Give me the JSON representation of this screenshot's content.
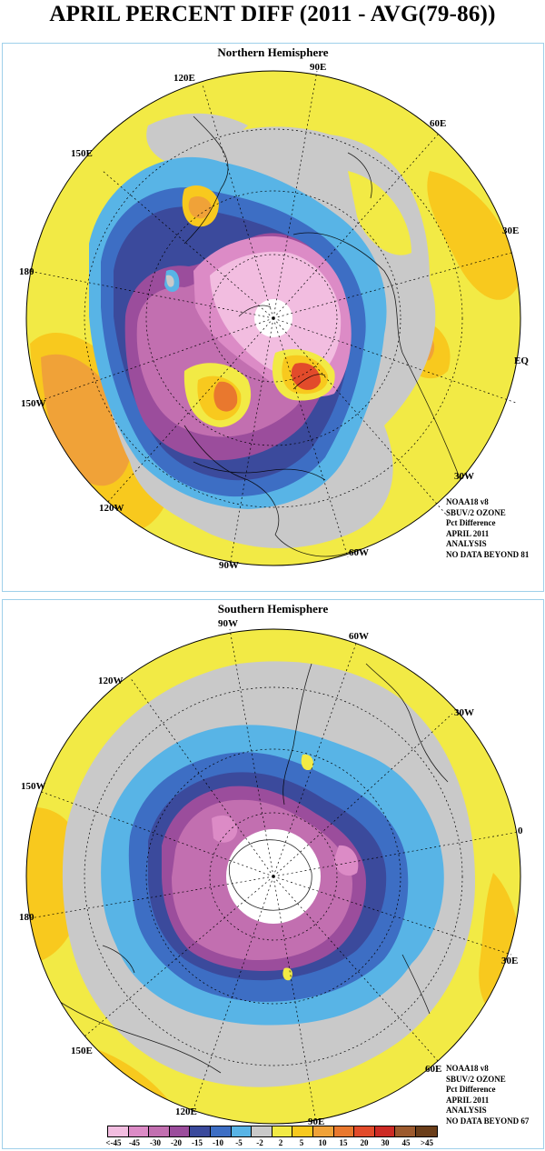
{
  "title": "APRIL PERCENT DIFF (2011 - AVG(79-86))",
  "north": {
    "heading": "Northern Hemisphere",
    "longitude_labels": [
      "90E",
      "60E",
      "30E",
      "EQ",
      "30W",
      "60W",
      "90W",
      "120W",
      "150W",
      "180",
      "150E",
      "120E"
    ],
    "info": [
      "NOAA18 v8",
      "SBUV/2 OZONE",
      "Pct Difference",
      "APRIL 2011",
      "ANALYSIS",
      "NO DATA BEYOND  81"
    ]
  },
  "south": {
    "heading": "Southern Hemisphere",
    "longitude_labels": [
      "90W",
      "60W",
      "30W",
      "0",
      "30E",
      "60E",
      "90E",
      "120E",
      "150E",
      "180",
      "150W",
      "120W"
    ],
    "info": [
      "NOAA18 v8",
      "SBUV/2 OZONE",
      "Pct Difference",
      "APRIL 2011",
      "ANALYSIS",
      "NO DATA BEYOND  67"
    ]
  },
  "legend": {
    "labels": [
      "<-45",
      "-45",
      "-30",
      "-20",
      "-15",
      "-10",
      "-5",
      "-2",
      "2",
      "5",
      "10",
      "15",
      "20",
      "30",
      "45",
      ">45"
    ],
    "colors": [
      "#f2bde0",
      "#dc8bc6",
      "#c26fb0",
      "#9b4d9c",
      "#3b4a9c",
      "#3d6ec4",
      "#58b4e6",
      "#c9c9c9",
      "#f2ea45",
      "#f8c91e",
      "#f0a238",
      "#e9782e",
      "#e24b2b",
      "#cc2b25",
      "#9c5a2e",
      "#6b3e1a"
    ]
  },
  "colors": {
    "frame": "#9fd0ea",
    "neutral": "#c9c9c9",
    "pos2": "#f2ea45",
    "pos5": "#f8c91e",
    "pos10": "#f0a238",
    "pos15": "#e9782e",
    "pos20": "#e24b2b",
    "neg2": "#58b4e6",
    "neg5": "#3d6ec4",
    "neg10": "#3b4a9c",
    "neg15": "#9b4d9c",
    "neg20": "#c26fb0",
    "neg30": "#dc8bc6",
    "neg45": "#f2bde0"
  }
}
